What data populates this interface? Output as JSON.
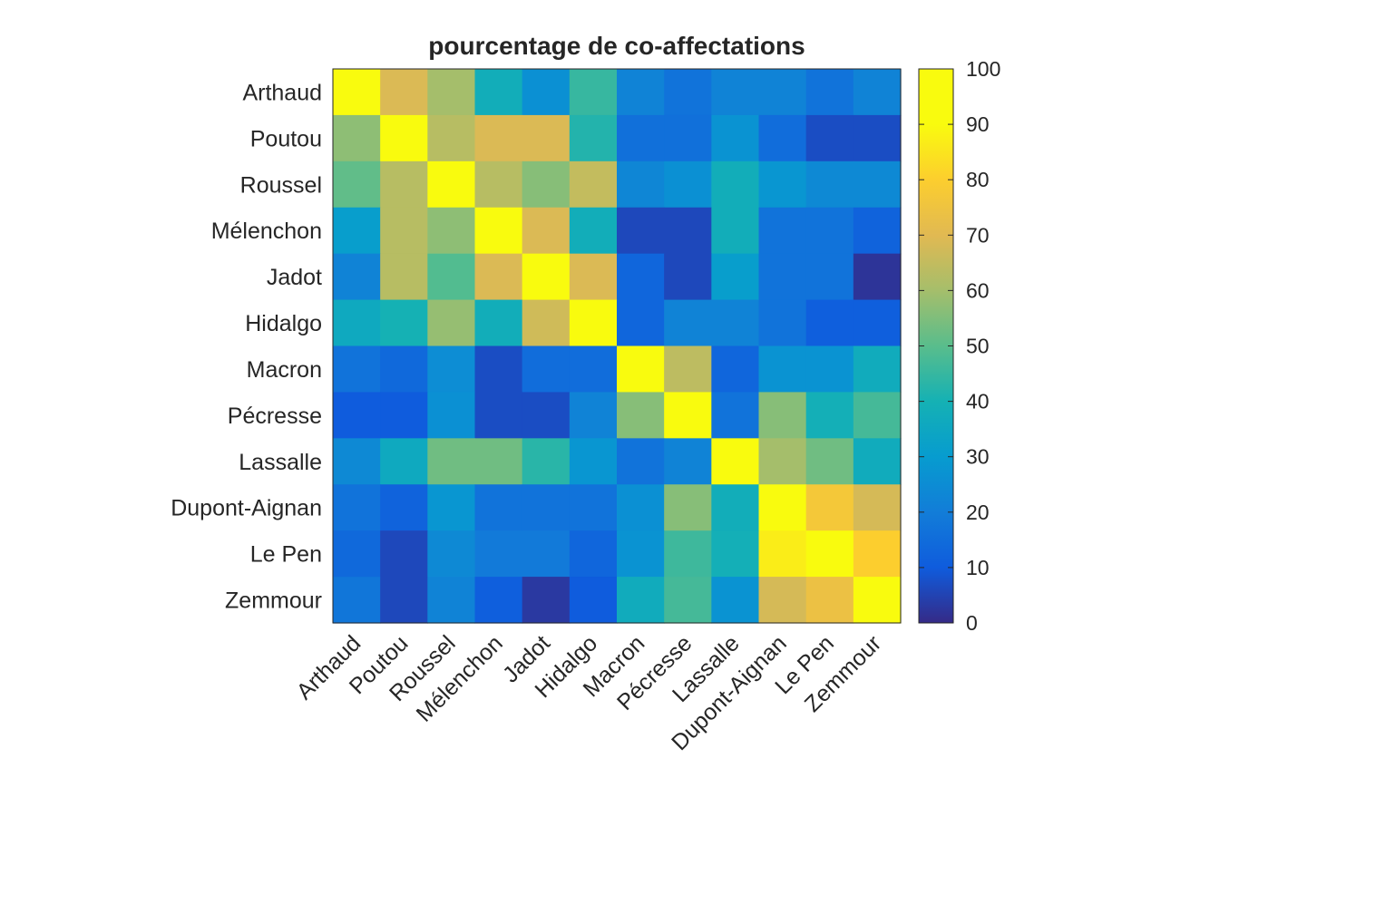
{
  "chart_data": {
    "type": "heatmap",
    "title": "pourcentage de co-affectations",
    "xlabel": "",
    "ylabel": "",
    "rows": [
      "Arthaud",
      "Poutou",
      "Roussel",
      "Mélenchon",
      "Jadot",
      "Hidalgo",
      "Macron",
      "Pécresse",
      "Lassalle",
      "Dupont-Aignan",
      "Le Pen",
      "Zemmour"
    ],
    "columns": [
      "Arthaud",
      "Poutou",
      "Roussel",
      "Mélenchon",
      "Jadot",
      "Hidalgo",
      "Macron",
      "Pécresse",
      "Lassalle",
      "Dupont-Aignan",
      "Le Pen",
      "Zemmour"
    ],
    "values": [
      [
        100,
        69,
        60,
        38,
        26,
        45,
        22,
        17,
        22,
        22,
        17,
        22
      ],
      [
        57,
        100,
        63,
        69,
        69,
        42,
        16,
        16,
        27,
        15,
        7,
        7
      ],
      [
        51,
        63,
        100,
        63,
        56,
        65,
        23,
        26,
        38,
        28,
        24,
        24
      ],
      [
        31,
        63,
        57,
        100,
        69,
        38,
        6,
        6,
        38,
        17,
        17,
        12
      ],
      [
        22,
        63,
        49,
        69,
        100,
        69,
        13,
        6,
        31,
        17,
        17,
        2
      ],
      [
        36,
        40,
        58,
        38,
        67,
        100,
        13,
        22,
        22,
        17,
        11,
        11
      ],
      [
        17,
        14,
        25,
        7,
        15,
        15,
        100,
        64,
        13,
        27,
        27,
        37
      ],
      [
        10,
        10,
        26,
        7,
        7,
        22,
        56,
        100,
        17,
        56,
        39,
        47
      ],
      [
        24,
        36,
        53,
        53,
        43,
        28,
        17,
        22,
        100,
        60,
        53,
        37
      ],
      [
        17,
        12,
        28,
        17,
        17,
        17,
        26,
        56,
        38,
        100,
        77,
        68
      ],
      [
        14,
        6,
        24,
        19,
        19,
        13,
        27,
        46,
        39,
        87,
        100,
        80
      ],
      [
        18,
        6,
        22,
        11,
        3,
        10,
        37,
        47,
        27,
        68,
        74,
        100
      ]
    ],
    "colorbar": {
      "min": 0,
      "max": 100,
      "ticks": [
        0,
        10,
        20,
        30,
        40,
        50,
        60,
        70,
        80,
        90,
        100
      ],
      "colormap": "parula"
    },
    "legend": "colorbar-right",
    "grid": false
  }
}
